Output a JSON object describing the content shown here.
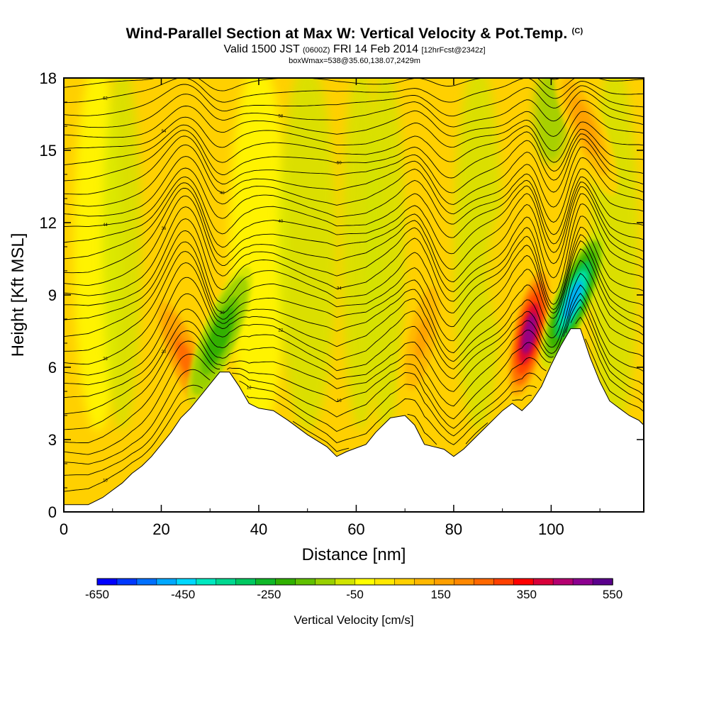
{
  "chart_data": {
    "type": "heatmap",
    "title": "Wind-Parallel Section at Max W: Vertical Velocity & Pot.Temp.",
    "title_mark": "(C)",
    "subtitle_main": "Valid 1500 JST",
    "subtitle_utc": "(0600Z)",
    "subtitle_date": "FRI 14 Feb 2014",
    "subtitle_fcst": "[12hrFcst@2342z]",
    "subtitle2": "boxWmax=538@35.60,138.07,2429m",
    "xlabel": "Distance [nm]",
    "ylabel": "Height [Kft MSL]",
    "xlim": [
      0,
      119
    ],
    "ylim": [
      0,
      18
    ],
    "xticks": [
      "0",
      "20",
      "40",
      "60",
      "80",
      "100"
    ],
    "yticks": [
      "0",
      "3",
      "6",
      "9",
      "12",
      "15",
      "18"
    ],
    "colorbar": {
      "label": "Vertical Velocity [cm/s]",
      "tick_labels": [
        "-650",
        "-450",
        "-250",
        "-50",
        "150",
        "350",
        "550"
      ],
      "min": -650,
      "max": 550,
      "step": 50,
      "colors": [
        "#0000ff",
        "#0038ff",
        "#0070ff",
        "#00a8ff",
        "#00d8ff",
        "#00e8c0",
        "#00d890",
        "#00c860",
        "#10b828",
        "#30b000",
        "#60c000",
        "#98d000",
        "#d0e400",
        "#ffff00",
        "#ffe800",
        "#ffd000",
        "#ffb800",
        "#ffa000",
        "#ff8800",
        "#ff6800",
        "#ff4000",
        "#ff0000",
        "#d8003a",
        "#b40070",
        "#8c0090",
        "#5a008c"
      ]
    },
    "terrain_kft": [
      [
        0,
        0.3
      ],
      [
        5,
        0.3
      ],
      [
        8,
        0.6
      ],
      [
        10,
        0.9
      ],
      [
        12,
        1.2
      ],
      [
        14,
        1.6
      ],
      [
        16,
        1.9
      ],
      [
        18,
        2.3
      ],
      [
        20,
        2.8
      ],
      [
        22,
        3.3
      ],
      [
        24,
        3.9
      ],
      [
        26,
        4.3
      ],
      [
        28,
        4.8
      ],
      [
        30,
        5.3
      ],
      [
        32,
        5.8
      ],
      [
        34,
        5.8
      ],
      [
        36,
        5.2
      ],
      [
        38,
        4.5
      ],
      [
        40,
        4.3
      ],
      [
        43,
        4.2
      ],
      [
        46,
        3.8
      ],
      [
        50,
        3.2
      ],
      [
        54,
        2.7
      ],
      [
        56,
        2.3
      ],
      [
        58,
        2.5
      ],
      [
        62,
        2.8
      ],
      [
        64,
        3.3
      ],
      [
        67,
        3.9
      ],
      [
        70,
        4.0
      ],
      [
        72,
        3.6
      ],
      [
        74,
        2.8
      ],
      [
        76,
        2.7
      ],
      [
        78,
        2.6
      ],
      [
        80,
        2.3
      ],
      [
        82,
        2.6
      ],
      [
        84,
        3.0
      ],
      [
        87,
        3.6
      ],
      [
        90,
        4.2
      ],
      [
        92,
        4.5
      ],
      [
        94,
        4.2
      ],
      [
        96,
        4.6
      ],
      [
        98,
        5.2
      ],
      [
        100,
        6.1
      ],
      [
        102,
        6.9
      ],
      [
        104,
        7.6
      ],
      [
        106,
        7.6
      ],
      [
        107,
        7.0
      ],
      [
        108,
        6.4
      ],
      [
        110,
        5.4
      ],
      [
        112,
        4.6
      ],
      [
        114,
        4.3
      ],
      [
        116,
        4.0
      ],
      [
        118,
        3.8
      ],
      [
        119,
        3.6
      ]
    ],
    "theta_isentropes_C": [
      "10",
      "12",
      "14",
      "16",
      "18",
      "20",
      "22",
      "24",
      "26",
      "28",
      "30",
      "32",
      "34",
      "36",
      "38",
      "40",
      "42",
      "44",
      "46",
      "48",
      "50",
      "52",
      "54",
      "56",
      "58",
      "60",
      "62",
      "64",
      "66",
      "68"
    ],
    "features": [
      {
        "name": "updraft",
        "x_nm": 25,
        "z_kft": 6.3,
        "w_cms": 300
      },
      {
        "name": "downdraft",
        "x_nm": 32,
        "z_kft": 7.3,
        "w_cms": -220
      },
      {
        "name": "updraft",
        "x_nm": 73.5,
        "z_kft": 7.2,
        "w_cms": 180
      },
      {
        "name": "updraft",
        "x_nm": 95.5,
        "z_kft": 7.4,
        "w_cms": 538
      },
      {
        "name": "downdraft",
        "x_nm": 104.5,
        "z_kft": 8.8,
        "w_cms": -480
      },
      {
        "name": "updraft",
        "x_nm": 107,
        "z_kft": 16,
        "w_cms": 200
      }
    ]
  }
}
